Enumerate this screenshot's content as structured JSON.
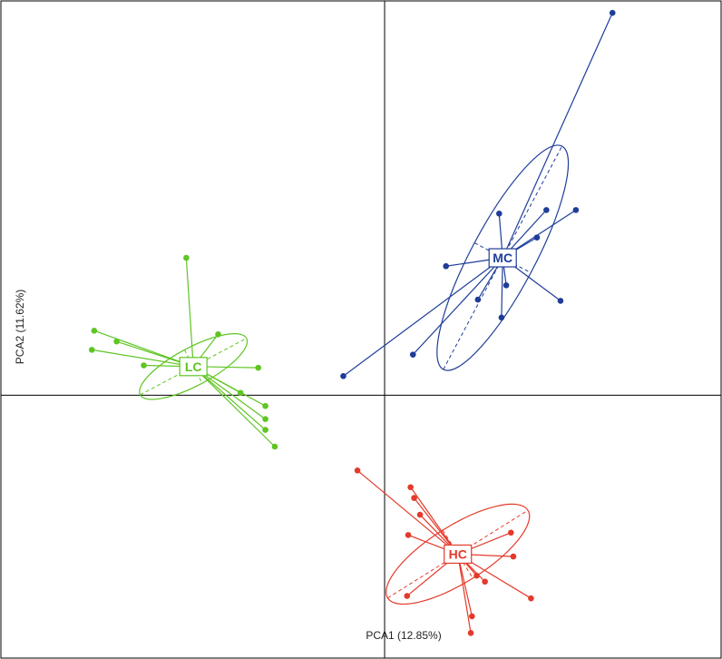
{
  "chart_data": {
    "type": "scatter",
    "title": "",
    "xlabel": "PCA1 (12.85%)",
    "ylabel": "PCA2 (11.62%)",
    "xlim": [
      -3.25,
      2.85
    ],
    "ylim": [
      -2.2,
      3.3
    ],
    "axes_origin": [
      0,
      0
    ],
    "grid": false,
    "legend": "none",
    "groups": [
      {
        "name": "LC",
        "color": "#5ec522",
        "centroid": [
          -1.62,
          0.24
        ],
        "ellipse": {
          "rx": 0.51,
          "ry": 0.16,
          "angle_deg": -28
        },
        "points": [
          [
            -2.46,
            0.54
          ],
          [
            -2.27,
            0.45
          ],
          [
            -2.48,
            0.38
          ],
          [
            -2.04,
            0.25
          ],
          [
            -1.68,
            1.15
          ],
          [
            -1.41,
            0.51
          ],
          [
            -1.07,
            0.23
          ],
          [
            -1.01,
            -0.09
          ],
          [
            -1.01,
            -0.2
          ],
          [
            -1.01,
            -0.29
          ],
          [
            -1.22,
            0.02
          ],
          [
            -0.93,
            -0.43
          ]
        ]
      },
      {
        "name": "MC",
        "color": "#1e3d99",
        "centroid": [
          1.0,
          1.15
        ],
        "ellipse": {
          "rx": 1.07,
          "ry": 0.27,
          "angle_deg": -62
        },
        "points": [
          [
            1.93,
            3.2
          ],
          [
            1.62,
            1.55
          ],
          [
            1.37,
            1.55
          ],
          [
            0.97,
            1.52
          ],
          [
            1.29,
            1.32
          ],
          [
            0.52,
            1.08
          ],
          [
            1.03,
            0.92
          ],
          [
            0.79,
            0.8
          ],
          [
            0.99,
            0.65
          ],
          [
            1.49,
            0.79
          ],
          [
            0.24,
            0.34
          ],
          [
            -0.35,
            0.16
          ]
        ]
      },
      {
        "name": "HC",
        "color": "#e43a2a",
        "centroid": [
          0.62,
          -1.33
        ],
        "ellipse": {
          "rx": 0.7,
          "ry": 0.24,
          "angle_deg": -32
        },
        "points": [
          [
            -0.23,
            -0.63
          ],
          [
            0.22,
            -0.77
          ],
          [
            0.25,
            -0.86
          ],
          [
            0.3,
            -1.0
          ],
          [
            0.2,
            -1.17
          ],
          [
            1.07,
            -1.15
          ],
          [
            1.09,
            -1.35
          ],
          [
            0.78,
            -1.51
          ],
          [
            0.85,
            -1.56
          ],
          [
            1.24,
            -1.7
          ],
          [
            0.19,
            -1.68
          ],
          [
            0.74,
            -1.85
          ],
          [
            0.73,
            -1.99
          ]
        ]
      }
    ]
  }
}
